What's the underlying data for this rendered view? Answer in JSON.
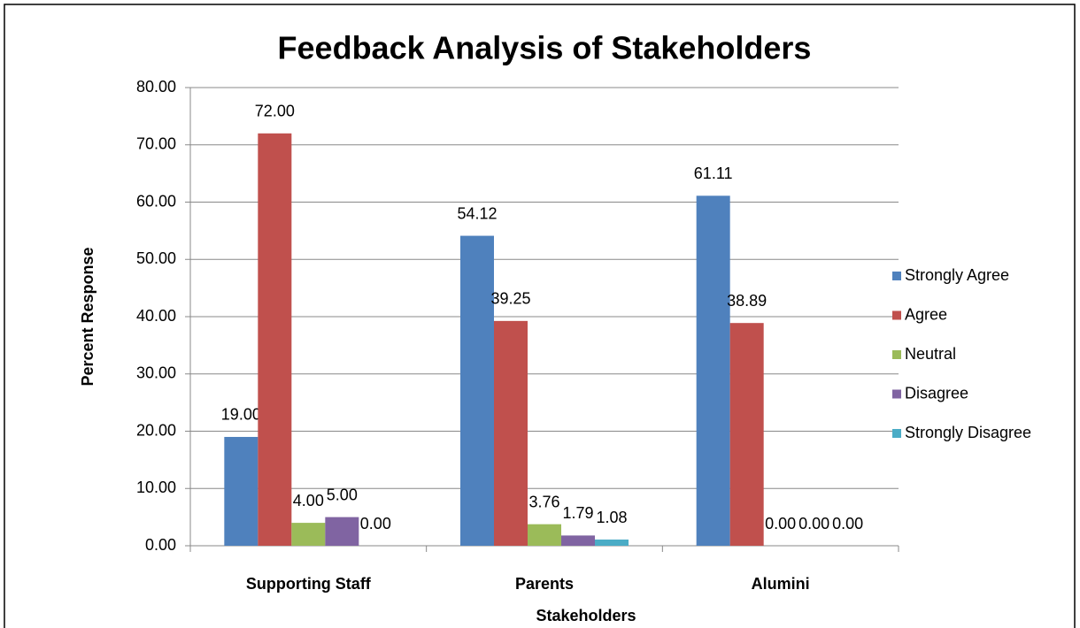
{
  "chart_data": {
    "type": "bar",
    "title": "Feedback  Analysis of Stakeholders",
    "x_label": "Stakeholders",
    "y_label": "Percent Response",
    "categories": [
      "Supporting Staff",
      "Parents",
      "Alumini"
    ],
    "series": [
      {
        "name": "Strongly Agree",
        "color": "#4f81bd",
        "values": [
          19,
          54.12,
          61.11
        ],
        "value_labels": [
          "19.00",
          "54.12",
          "61.11"
        ]
      },
      {
        "name": "Agree",
        "color": "#c0504d",
        "values": [
          72,
          39.25,
          38.89
        ],
        "value_labels": [
          "72.00",
          "39.25",
          "38.89"
        ]
      },
      {
        "name": "Neutral",
        "color": "#9bbb59",
        "values": [
          4,
          3.76,
          0
        ],
        "value_labels": [
          "4.00",
          "3.76",
          "0.00"
        ]
      },
      {
        "name": "Disagree",
        "color": "#8064a2",
        "values": [
          5,
          1.79,
          0
        ],
        "value_labels": [
          "5.00",
          "1.79",
          "0.00"
        ]
      },
      {
        "name": "Strongly Disagree",
        "color": "#4bacc6",
        "values": [
          0,
          1.08,
          0
        ],
        "value_labels": [
          "0.00",
          "1.08",
          "0.00"
        ]
      }
    ],
    "ylim": [
      0,
      80
    ],
    "yticks": [
      {
        "value": 0,
        "label": "0.00"
      },
      {
        "value": 10,
        "label": "10.00"
      },
      {
        "value": 20,
        "label": "20.00"
      },
      {
        "value": 30,
        "label": "30.00"
      },
      {
        "value": 40,
        "label": "40.00"
      },
      {
        "value": 50,
        "label": "50.00"
      },
      {
        "value": 60,
        "label": "60.00"
      },
      {
        "value": 70,
        "label": "70.00"
      },
      {
        "value": 80,
        "label": "80.00"
      }
    ],
    "grid": true,
    "legend": "right"
  }
}
